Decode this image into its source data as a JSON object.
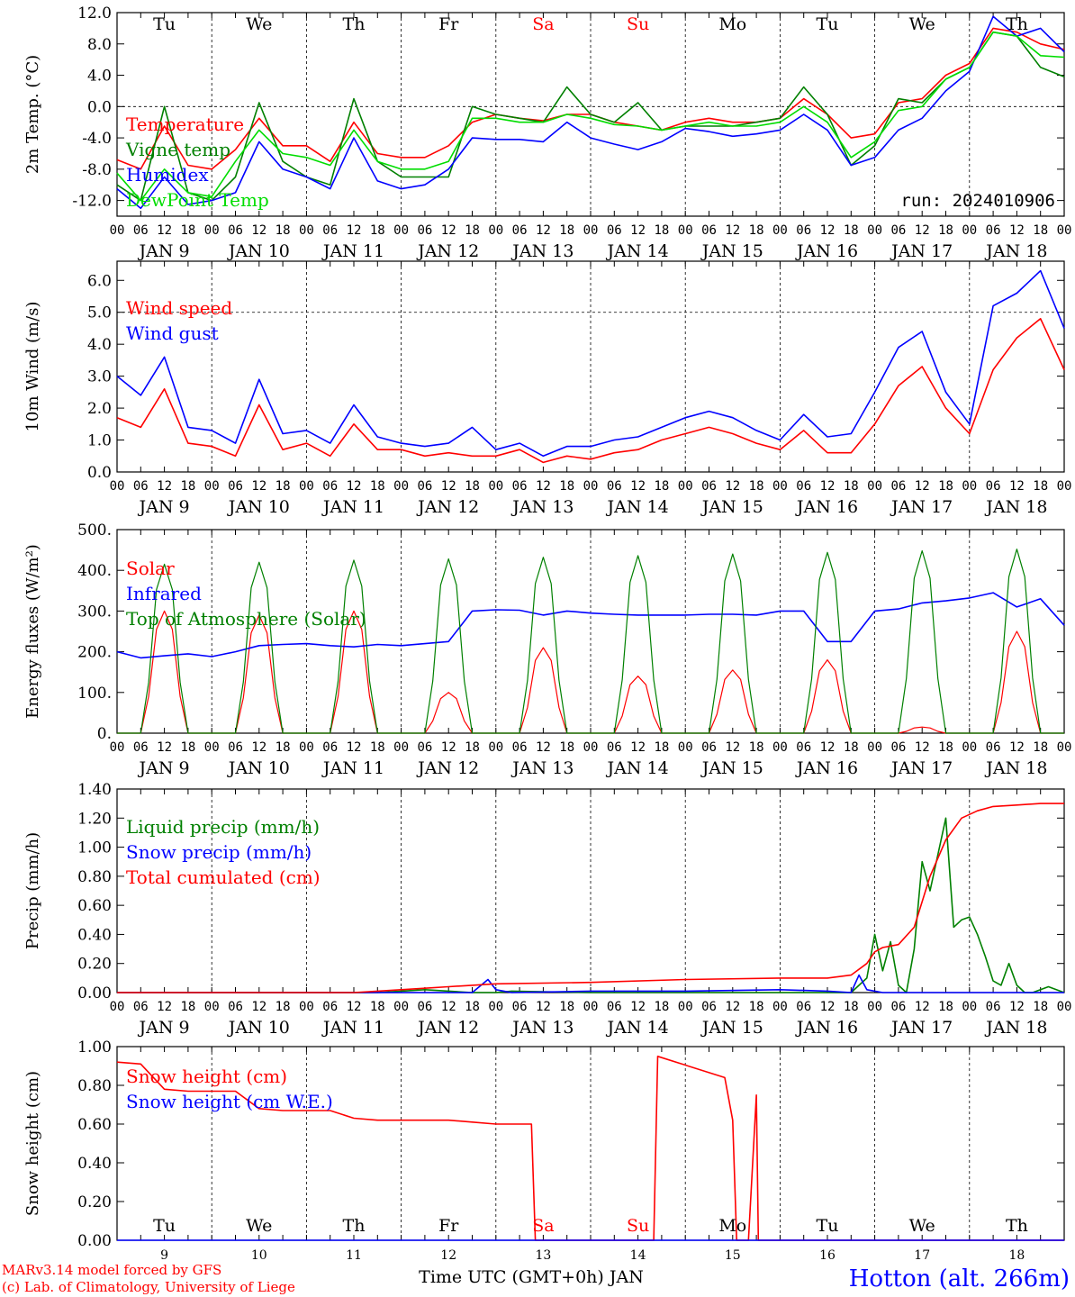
{
  "meteogram": {
    "location": "Hotton (alt. 266m)",
    "run_label": "run: 2024010906",
    "credit_1": "MARv3.14 model forced by GFS",
    "credit_2": "(c) Lab. of Climatology, University of Liege",
    "time_label": "Time UTC (GMT+0h) JAN",
    "colors": {
      "red": "#ff0000",
      "blue": "#0000ff",
      "green": "#008000",
      "lightgreen": "#00dd00",
      "axis": "#000000"
    },
    "weekdays": [
      "Tu",
      "We",
      "Th",
      "Fr",
      "Sa",
      "Su",
      "Mo",
      "Tu",
      "We",
      "Th"
    ],
    "weekend_days": [
      "Sa",
      "Su"
    ],
    "date_labels": [
      "JAN  9",
      "JAN 10",
      "JAN 11",
      "JAN 12",
      "JAN 13",
      "JAN 14",
      "JAN 15",
      "JAN 16",
      "JAN 17",
      "JAN 18"
    ],
    "day_numbers": [
      "9",
      "10",
      "11",
      "12",
      "13",
      "14",
      "15",
      "16",
      "17",
      "18"
    ],
    "hour_ticks": [
      "00",
      "06",
      "12",
      "18"
    ],
    "final_hour_tick": "00"
  },
  "chart_data": [
    {
      "type": "line",
      "ylabel": "2m Temp. (°C)",
      "ylim": [
        -14,
        12
      ],
      "yticks": [
        "12.0",
        "8.0",
        "4.0",
        "0.0",
        "-4.0",
        "-8.0",
        "-12.0"
      ],
      "reference_line": 0,
      "x_unit": "hours since 2024-01-09 00 UTC",
      "x": [
        0,
        6,
        12,
        18,
        24,
        30,
        36,
        42,
        48,
        54,
        60,
        66,
        72,
        78,
        84,
        90,
        96,
        102,
        108,
        114,
        120,
        126,
        132,
        138,
        144,
        150,
        156,
        162,
        168,
        174,
        180,
        186,
        192,
        198,
        204,
        210,
        216,
        222,
        228,
        234,
        240
      ],
      "series": [
        {
          "name": "Temperature",
          "color": "#ff0000",
          "values": [
            -6.8,
            -8,
            -2.5,
            -7.5,
            -8,
            -5.5,
            -1.5,
            -5,
            -5,
            -7,
            -2,
            -6,
            -6.5,
            -6.5,
            -5,
            -2,
            -1,
            -1.5,
            -1.8,
            -1,
            -1,
            -2,
            -2.5,
            -3,
            -2,
            -1.5,
            -2,
            -2,
            -1.5,
            1,
            -1,
            -4,
            -3.5,
            0.5,
            1,
            4,
            5.5,
            10,
            9.5,
            8,
            7.3
          ]
        },
        {
          "name": "Vigne temp",
          "color": "#008000",
          "values": [
            -10,
            -12,
            0,
            -11,
            -12,
            -9,
            0.5,
            -7,
            -9,
            -10,
            1,
            -7,
            -9,
            -9,
            -9,
            0,
            -1,
            -1.5,
            -2,
            2.5,
            -1,
            -2,
            0.5,
            -3,
            -2.5,
            -2.5,
            -2.5,
            -2,
            -1.5,
            2.5,
            -1,
            -7.5,
            -5,
            1,
            0.5,
            3.5,
            5,
            9.5,
            9,
            5,
            3.8
          ]
        },
        {
          "name": "Humidex",
          "color": "#0000ff",
          "values": [
            -10.5,
            -13,
            -9,
            -12.5,
            -12,
            -11,
            -4.5,
            -8,
            -9,
            -10.5,
            -4,
            -9.5,
            -10.5,
            -10,
            -8,
            -4,
            -4.2,
            -4.2,
            -4.5,
            -2,
            -4,
            -4.8,
            -5.5,
            -4.5,
            -2.8,
            -3.2,
            -3.8,
            -3.5,
            -3,
            -1,
            -3,
            -7.5,
            -6.5,
            -3,
            -1.5,
            2,
            4.5,
            11.5,
            9,
            10,
            7
          ]
        },
        {
          "name": "DewPoint Temp",
          "color": "#00dd00",
          "values": [
            -8.5,
            -12,
            -8,
            -11,
            -11.5,
            -7,
            -3,
            -6,
            -6.5,
            -7.5,
            -3,
            -7,
            -8,
            -8,
            -7,
            -1.5,
            -1.5,
            -2,
            -2,
            -1,
            -1.5,
            -2.3,
            -2.5,
            -3,
            -2.5,
            -2,
            -2.5,
            -2.5,
            -2,
            0,
            -2,
            -6.5,
            -4.5,
            -0.5,
            0,
            3.5,
            5,
            9.5,
            9,
            6.5,
            6.3
          ]
        }
      ]
    },
    {
      "type": "line",
      "ylabel": "10m Wind (m/s)",
      "ylim": [
        0,
        6.6
      ],
      "yticks": [
        "6.0",
        "5.0",
        "4.0",
        "3.0",
        "2.0",
        "1.0",
        "0.0"
      ],
      "reference_line": 5,
      "x_unit": "hours since 2024-01-09 00 UTC",
      "x": [
        0,
        6,
        12,
        18,
        24,
        30,
        36,
        42,
        48,
        54,
        60,
        66,
        72,
        78,
        84,
        90,
        96,
        102,
        108,
        114,
        120,
        126,
        132,
        138,
        144,
        150,
        156,
        162,
        168,
        174,
        180,
        186,
        192,
        198,
        204,
        210,
        216,
        222,
        228,
        234,
        240
      ],
      "series": [
        {
          "name": "Wind speed",
          "color": "#ff0000",
          "values": [
            1.7,
            1.4,
            2.6,
            0.9,
            0.8,
            0.5,
            2.1,
            0.7,
            0.9,
            0.5,
            1.5,
            0.7,
            0.7,
            0.5,
            0.6,
            0.5,
            0.5,
            0.7,
            0.3,
            0.5,
            0.4,
            0.6,
            0.7,
            1,
            1.2,
            1.4,
            1.2,
            0.9,
            0.7,
            1.3,
            0.6,
            0.6,
            1.5,
            2.7,
            3.3,
            2,
            1.2,
            3.2,
            4.2,
            4.8,
            3.2
          ]
        },
        {
          "name": "Wind gust",
          "color": "#0000ff",
          "values": [
            3,
            2.4,
            3.6,
            1.4,
            1.3,
            0.9,
            2.9,
            1.2,
            1.3,
            0.9,
            2.1,
            1.1,
            0.9,
            0.8,
            0.9,
            1.4,
            0.7,
            0.9,
            0.5,
            0.8,
            0.8,
            1,
            1.1,
            1.4,
            1.7,
            1.9,
            1.7,
            1.3,
            1,
            1.8,
            1.1,
            1.2,
            2.5,
            3.9,
            4.4,
            2.5,
            1.5,
            5.2,
            5.6,
            6.3,
            4.5
          ]
        }
      ]
    },
    {
      "type": "line",
      "ylabel": "Energy fluxes (W/m²)",
      "ylim": [
        0,
        500
      ],
      "yticks": [
        "500.",
        "400.",
        "300.",
        "200.",
        "100.",
        "0."
      ],
      "x_unit": "hours since 2024-01-09 00 UTC",
      "series": [
        {
          "name": "Solar",
          "color": "#ff0000",
          "peaks": [
            300,
            290,
            300,
            100,
            210,
            140,
            155,
            180,
            15,
            250
          ]
        },
        {
          "name": "Infrared",
          "color": "#0000ff",
          "x": [
            0,
            6,
            12,
            18,
            24,
            30,
            36,
            42,
            48,
            54,
            60,
            66,
            72,
            78,
            84,
            90,
            96,
            102,
            108,
            114,
            120,
            126,
            132,
            138,
            144,
            150,
            156,
            162,
            168,
            174,
            180,
            186,
            192,
            198,
            204,
            210,
            216,
            222,
            228,
            234,
            240
          ],
          "values": [
            200,
            185,
            190,
            195,
            188,
            200,
            215,
            218,
            220,
            215,
            212,
            218,
            215,
            220,
            225,
            300,
            303,
            302,
            290,
            300,
            295,
            292,
            290,
            290,
            290,
            292,
            292,
            290,
            300,
            300,
            225,
            225,
            300,
            305,
            320,
            325,
            332,
            345,
            310,
            330,
            265
          ]
        },
        {
          "name": "Top of Atmosphere (Solar)",
          "color": "#008000",
          "peaks": [
            415,
            420,
            425,
            428,
            432,
            436,
            440,
            444,
            448,
            452
          ]
        }
      ]
    },
    {
      "type": "line",
      "ylabel": "Precip (mm/h)",
      "ylim": [
        0,
        1.4
      ],
      "yticks": [
        "1.40",
        "1.20",
        "1.00",
        "0.80",
        "0.60",
        "0.40",
        "0.20",
        "0.00"
      ],
      "x_unit": "hours since 2024-01-09 00 UTC",
      "series": [
        {
          "name": "Liquid precip (mm/h)",
          "color": "#008000",
          "x": [
            0,
            66,
            72,
            78,
            90,
            96,
            100,
            120,
            168,
            186,
            190,
            192,
            194,
            196,
            198,
            200,
            202,
            204,
            206,
            210,
            212,
            214,
            216,
            218,
            220,
            222,
            224,
            226,
            228,
            230,
            232,
            236,
            240
          ],
          "values": [
            0,
            0,
            0.01,
            0.02,
            0,
            0,
            0.01,
            0,
            0,
            0,
            0.1,
            0.4,
            0.15,
            0.35,
            0.05,
            0,
            0.3,
            0.9,
            0.7,
            1.2,
            0.45,
            0.5,
            0.52,
            0.4,
            0.25,
            0.08,
            0.05,
            0.2,
            0.05,
            0,
            0,
            0.04,
            0
          ]
        },
        {
          "name": "Snow precip (mm/h)",
          "color": "#0000ff",
          "x": [
            0,
            90,
            94,
            96,
            100,
            120,
            144,
            168,
            180,
            186,
            188,
            190,
            194,
            240
          ],
          "values": [
            0,
            0,
            0.09,
            0.02,
            0,
            0.01,
            0.01,
            0.02,
            0.01,
            0,
            0.12,
            0.02,
            0,
            0
          ]
        },
        {
          "name": "Total cumulated (cm)",
          "color": "#ff0000",
          "x": [
            0,
            60,
            66,
            72,
            78,
            84,
            90,
            96,
            120,
            144,
            168,
            180,
            186,
            190,
            192,
            194,
            198,
            202,
            206,
            210,
            214,
            218,
            222,
            228,
            234,
            240
          ],
          "values": [
            0,
            0,
            0.01,
            0.02,
            0.03,
            0.04,
            0.05,
            0.06,
            0.07,
            0.09,
            0.1,
            0.1,
            0.12,
            0.2,
            0.28,
            0.31,
            0.33,
            0.45,
            0.8,
            1.05,
            1.2,
            1.25,
            1.28,
            1.29,
            1.3,
            1.3
          ]
        }
      ]
    },
    {
      "type": "line",
      "ylabel": "Snow height (cm)",
      "ylim": [
        0,
        1
      ],
      "yticks": [
        "1.00",
        "0.80",
        "0.60",
        "0.40",
        "0.20",
        "0.00"
      ],
      "x_unit": "hours since 2024-01-09 00 UTC",
      "series": [
        {
          "name": "Snow height (cm)",
          "color": "#ff0000",
          "x": [
            0,
            6,
            12,
            18,
            24,
            30,
            36,
            42,
            48,
            54,
            60,
            66,
            72,
            78,
            84,
            90,
            96,
            105,
            106,
            136,
            137,
            154,
            156,
            157,
            160,
            162,
            162.5,
            163,
            240
          ],
          "values": [
            0.92,
            0.91,
            0.78,
            0.77,
            0.77,
            0.77,
            0.68,
            0.67,
            0.67,
            0.67,
            0.63,
            0.62,
            0.62,
            0.62,
            0.62,
            0.61,
            0.6,
            0.6,
            0,
            0,
            0.95,
            0.84,
            0.62,
            0,
            0,
            0.75,
            0,
            0,
            0
          ]
        },
        {
          "name": "Snow height (cm W.E.)",
          "color": "#0000ff",
          "x": [
            0,
            240
          ],
          "values": [
            0,
            0
          ]
        }
      ]
    }
  ]
}
